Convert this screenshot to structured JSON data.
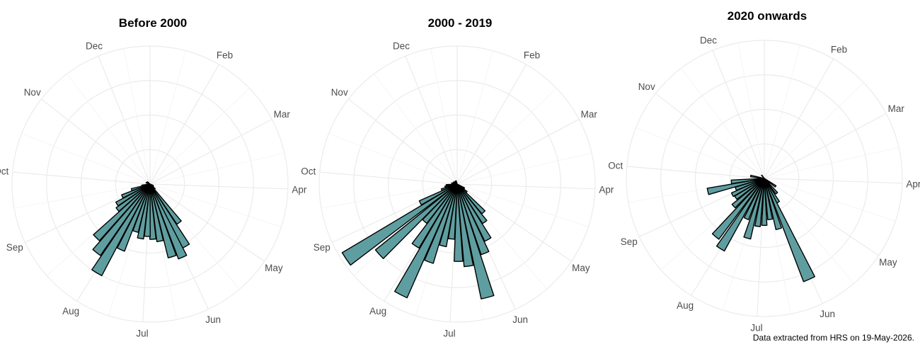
{
  "chart_data": [
    {
      "type": "polar-bar",
      "title": "Before 2000",
      "month_labels": [
        "Dec",
        "Feb",
        "Mar",
        "Apr",
        "May",
        "Jun",
        "Jul",
        "Aug",
        "Sep",
        "Oct",
        "Nov"
      ],
      "bar_color": "#5f9ea0",
      "bars": [
        {
          "deg": 143,
          "value": 0.35
        },
        {
          "deg": 150,
          "value": 0.52
        },
        {
          "deg": 156,
          "value": 0.58
        },
        {
          "deg": 163,
          "value": 0.55
        },
        {
          "deg": 170,
          "value": 0.42
        },
        {
          "deg": 177,
          "value": 0.4
        },
        {
          "deg": 183,
          "value": 0.38
        },
        {
          "deg": 190,
          "value": 0.4
        },
        {
          "deg": 197,
          "value": 0.36
        },
        {
          "deg": 204,
          "value": 0.52
        },
        {
          "deg": 211,
          "value": 0.75
        },
        {
          "deg": 218,
          "value": 0.63
        },
        {
          "deg": 225,
          "value": 0.55
        },
        {
          "deg": 232,
          "value": 0.3
        },
        {
          "deg": 239,
          "value": 0.28
        },
        {
          "deg": 246,
          "value": 0.22
        },
        {
          "deg": 253,
          "value": 0.14
        },
        {
          "deg": 260,
          "value": 0.06
        },
        {
          "deg": 290,
          "value": 0.03
        },
        {
          "deg": 310,
          "value": 0.025
        },
        {
          "deg": 115,
          "value": 0.025
        },
        {
          "deg": 125,
          "value": 0.03
        },
        {
          "deg": 135,
          "value": 0.05
        }
      ]
    },
    {
      "type": "polar-bar",
      "title": "2000 - 2019",
      "month_labels": [
        "Dec",
        "Feb",
        "Mar",
        "Apr",
        "May",
        "Jun",
        "Jul",
        "Aug",
        "Sep",
        "Oct",
        "Nov"
      ],
      "bar_color": "#5f9ea0",
      "bars": [
        {
          "deg": 120,
          "value": 0.06
        },
        {
          "deg": 130,
          "value": 0.09
        },
        {
          "deg": 137,
          "value": 0.28
        },
        {
          "deg": 144,
          "value": 0.34
        },
        {
          "deg": 151,
          "value": 0.46
        },
        {
          "deg": 158,
          "value": 0.54
        },
        {
          "deg": 165,
          "value": 0.85
        },
        {
          "deg": 172,
          "value": 0.6
        },
        {
          "deg": 179,
          "value": 0.56
        },
        {
          "deg": 186,
          "value": 0.4
        },
        {
          "deg": 193,
          "value": 0.46
        },
        {
          "deg": 200,
          "value": 0.6
        },
        {
          "deg": 207,
          "value": 0.9
        },
        {
          "deg": 214,
          "value": 0.54
        },
        {
          "deg": 221,
          "value": 0.36
        },
        {
          "deg": 228,
          "value": 0.76
        },
        {
          "deg": 236,
          "value": 0.97
        },
        {
          "deg": 243,
          "value": 0.3
        },
        {
          "deg": 250,
          "value": 0.12
        },
        {
          "deg": 257,
          "value": 0.09
        },
        {
          "deg": 264,
          "value": 0.08
        },
        {
          "deg": 280,
          "value": 0.04
        },
        {
          "deg": 300,
          "value": 0.03
        },
        {
          "deg": 320,
          "value": 0.025
        },
        {
          "deg": 340,
          "value": 0.025
        }
      ]
    },
    {
      "type": "polar-bar",
      "title": "2020 onwards",
      "month_labels": [
        "Dec",
        "Feb",
        "Mar",
        "Apr",
        "May",
        "Jun",
        "Jul",
        "Aug",
        "Sep",
        "Oct",
        "Nov"
      ],
      "bar_color": "#5f9ea0",
      "bars": [
        {
          "deg": 125,
          "value": 0.1
        },
        {
          "deg": 140,
          "value": 0.14
        },
        {
          "deg": 150,
          "value": 0.2
        },
        {
          "deg": 156,
          "value": 0.8
        },
        {
          "deg": 164,
          "value": 0.38
        },
        {
          "deg": 172,
          "value": 0.3
        },
        {
          "deg": 180,
          "value": 0.34
        },
        {
          "deg": 188,
          "value": 0.35
        },
        {
          "deg": 196,
          "value": 0.45
        },
        {
          "deg": 204,
          "value": 0.32
        },
        {
          "deg": 212,
          "value": 0.6
        },
        {
          "deg": 220,
          "value": 0.55
        },
        {
          "deg": 228,
          "value": 0.3
        },
        {
          "deg": 236,
          "value": 0.25
        },
        {
          "deg": 243,
          "value": 0.26
        },
        {
          "deg": 250,
          "value": 0.22
        },
        {
          "deg": 257,
          "value": 0.42
        },
        {
          "deg": 264,
          "value": 0.24
        },
        {
          "deg": 280,
          "value": 0.1
        },
        {
          "deg": 320,
          "value": 0.03
        }
      ]
    }
  ],
  "footnote": "Data extracted from HRS on 19-May-2026."
}
